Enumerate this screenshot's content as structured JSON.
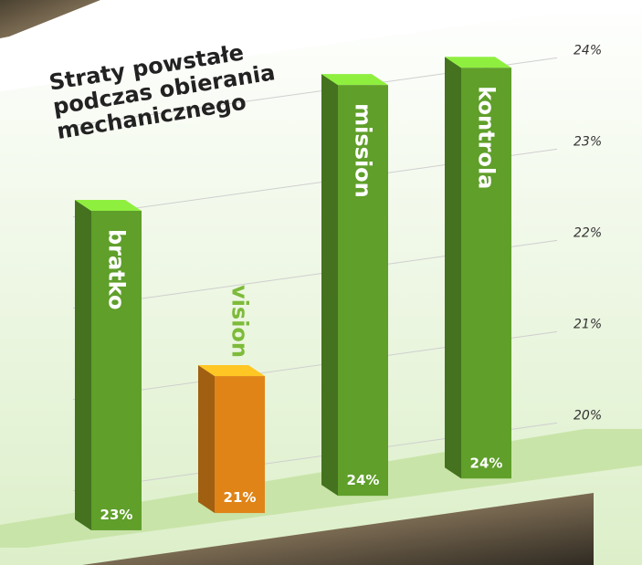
{
  "chart_data": {
    "type": "bar",
    "title": "Straty powstałe podczas obierania mechanicznego",
    "categories": [
      "bratko",
      "vision",
      "mission",
      "kontrola"
    ],
    "values": [
      23,
      21,
      24,
      24
    ],
    "value_labels": [
      "23%",
      "21%",
      "24%",
      "24%"
    ],
    "colors": [
      "#5f9f2a",
      "#e08418",
      "#5f9f2a",
      "#5f9f2a"
    ],
    "ylim": [
      19.5,
      24
    ],
    "yticks": [
      {
        "value": 20,
        "label": "20%"
      },
      {
        "value": 21,
        "label": "21%"
      },
      {
        "value": 22,
        "label": "22%"
      },
      {
        "value": 23,
        "label": "23%"
      },
      {
        "value": 24,
        "label": "24%"
      }
    ],
    "grid": true
  }
}
